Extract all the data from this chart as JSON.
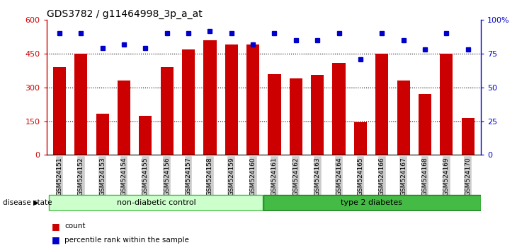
{
  "title": "GDS3782 / g11464998_3p_a_at",
  "samples": [
    "GSM524151",
    "GSM524152",
    "GSM524153",
    "GSM524154",
    "GSM524155",
    "GSM524156",
    "GSM524157",
    "GSM524158",
    "GSM524159",
    "GSM524160",
    "GSM524161",
    "GSM524162",
    "GSM524163",
    "GSM524164",
    "GSM524165",
    "GSM524166",
    "GSM524167",
    "GSM524168",
    "GSM524169",
    "GSM524170"
  ],
  "counts": [
    390,
    450,
    185,
    330,
    175,
    390,
    470,
    510,
    490,
    490,
    360,
    340,
    355,
    410,
    145,
    450,
    330,
    270,
    450,
    165
  ],
  "percentiles": [
    90,
    90,
    79,
    82,
    79,
    90,
    90,
    92,
    90,
    82,
    90,
    85,
    85,
    90,
    71,
    90,
    85,
    78,
    90,
    78
  ],
  "group1_count": 10,
  "group1_label": "non-diabetic control",
  "group2_label": "type 2 diabetes",
  "bar_color": "#cc0000",
  "dot_color": "#0000cc",
  "left_axis_color": "#cc0000",
  "right_axis_color": "#0000cc",
  "ylim_left": [
    0,
    600
  ],
  "ylim_right": [
    0,
    100
  ],
  "yticks_left": [
    0,
    150,
    300,
    450,
    600
  ],
  "yticks_right": [
    0,
    25,
    50,
    75,
    100
  ],
  "ytick_labels_left": [
    "0",
    "150",
    "300",
    "450",
    "600"
  ],
  "ytick_labels_right": [
    "0",
    "25",
    "50",
    "75",
    "100%"
  ],
  "legend_count_label": "count",
  "legend_pct_label": "percentile rank within the sample",
  "disease_state_label": "disease state",
  "bg_color": "#ffffff",
  "grid_linestyle": ":",
  "grid_linewidth": 0.8,
  "tick_bg_color": "#cccccc",
  "group1_bg": "#ccffcc",
  "group2_bg": "#44bb44",
  "group2_text_color": "#000000",
  "group_border_color": "#44bb44"
}
